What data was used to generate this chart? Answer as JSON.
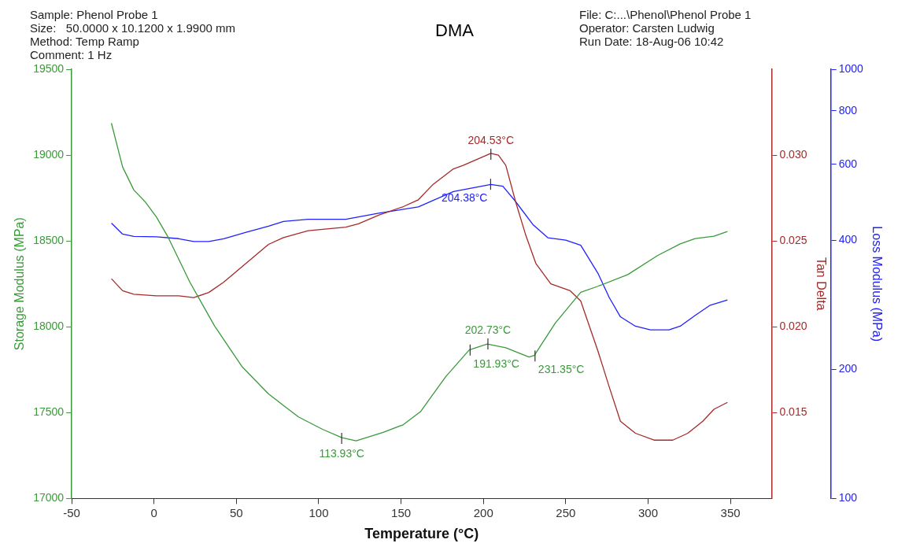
{
  "chart_data": {
    "type": "line",
    "title": "DMA",
    "xlabel": "Temperature (°C)",
    "ylabel": "Storage Modulus (MPa)",
    "y2label": "Tan Delta",
    "y3label": "Loss Modulus (MPa)",
    "xlim": [
      -50,
      375
    ],
    "xticks": [
      -50,
      0,
      50,
      100,
      150,
      200,
      250,
      300,
      350
    ],
    "ylim": [
      17000,
      19500
    ],
    "yticks": [
      17000,
      17500,
      18000,
      18500,
      19000,
      19500
    ],
    "y2lim": [
      0.01,
      0.035
    ],
    "y2ticks": [
      {
        "value": 0.015,
        "label": "0.015"
      },
      {
        "value": 0.02,
        "label": "0.020"
      },
      {
        "value": 0.025,
        "label": "0.025"
      },
      {
        "value": 0.03,
        "label": "0.030"
      }
    ],
    "y3lim": [
      100,
      1000
    ],
    "y3ticks": [
      100,
      200,
      400,
      600,
      800,
      1000
    ],
    "log": "y3",
    "grid": false,
    "legend": false,
    "series": [
      {
        "color": "#3a9a3a",
        "axis": "y",
        "x": [
          -25.9,
          -19.1,
          -12.3,
          -5.5,
          1.4,
          8.2,
          21.8,
          36.8,
          53.6,
          69.5,
          78.6,
          87.7,
          102.3,
          114.1,
          122.7,
          139.1,
          151.4,
          161.8,
          177.3,
          191.4,
          202.3,
          213.6,
          227.7,
          230.9,
          243.6,
          259.1,
          269.5,
          287.7,
          305.9,
          319.5,
          328.6,
          340,
          348.2
        ],
        "values": [
          19186,
          18931,
          18797,
          18729,
          18640,
          18528,
          18259,
          18004,
          17766,
          17609,
          17542,
          17475,
          17403,
          17354,
          17336,
          17385,
          17430,
          17506,
          17712,
          17865,
          17900,
          17878,
          17824,
          17833,
          18021,
          18201,
          18236,
          18304,
          18416,
          18483,
          18514,
          18528,
          18555
        ]
      },
      {
        "color": "#a52a2a",
        "axis": "y2",
        "x": [
          -25.9,
          -19.1,
          -12.3,
          1.4,
          15,
          24.1,
          33.2,
          42.3,
          55.9,
          69.5,
          78.6,
          93.6,
          116.4,
          124.1,
          136.4,
          151.4,
          160.5,
          169.5,
          181.8,
          187.7,
          204.5,
          209.1,
          213.6,
          219.5,
          225.5,
          231.8,
          240.9,
          252.7,
          259.1,
          269.5,
          276.4,
          283.2,
          292.3,
          303.6,
          315,
          324.1,
          333.2,
          340,
          348.2
        ],
        "values": [
          0.0228,
          0.0221,
          0.0219,
          0.0218,
          0.0218,
          0.0217,
          0.022,
          0.0226,
          0.0237,
          0.0248,
          0.0252,
          0.0256,
          0.0258,
          0.026,
          0.0265,
          0.027,
          0.0274,
          0.0283,
          0.0292,
          0.0294,
          0.0301,
          0.03,
          0.0294,
          0.0273,
          0.0254,
          0.0237,
          0.0225,
          0.0221,
          0.0215,
          0.0186,
          0.0165,
          0.0145,
          0.0138,
          0.0134,
          0.0134,
          0.0138,
          0.0145,
          0.0152,
          0.0156
        ]
      },
      {
        "color": "#2020ff",
        "axis": "y3",
        "x": [
          -25.9,
          -19.1,
          -12.3,
          1.4,
          15,
          24.1,
          33.2,
          42.3,
          55.9,
          69.5,
          78.6,
          93.6,
          116.4,
          136.4,
          160.5,
          181.8,
          204.5,
          211.8,
          219.5,
          230,
          239.1,
          250,
          259.1,
          269.5,
          276.4,
          283.2,
          292.3,
          301.4,
          312.7,
          319.5,
          328.6,
          337.7,
          348.2
        ],
        "values": [
          438,
          413,
          408,
          407,
          403,
          397,
          397,
          403,
          417,
          431,
          442,
          447,
          447,
          462,
          478,
          519,
          539,
          534,
          492,
          435,
          405,
          400,
          389,
          335,
          294,
          265,
          252,
          247,
          247,
          252,
          267,
          282,
          290
        ]
      }
    ],
    "annotations": [
      "Sample: Phenol Probe 1",
      "Size:   50.0000 x 10.1200 x 1.9900 mm",
      "Method: Temp Ramp",
      "Comment: 1 Hz",
      "File: C:...\\Phenol\\Phenol Probe 1",
      "Operator: Carsten Ludwig",
      "Run Date: 18-Aug-06 10:42",
      {
        "text": "113.93°C",
        "x": 113.93,
        "y": 17350
      },
      {
        "text": "191.93°C",
        "x": 191.93,
        "y": 17865
      },
      {
        "text": "202.73°C",
        "x": 202.73,
        "y": 17900
      },
      {
        "text": "231.35°C",
        "x": 231.35,
        "y": 17830
      },
      {
        "text": "204.53°C",
        "x": 204.53,
        "y": 19005
      },
      {
        "text": "204.38°C",
        "x": 204.38,
        "y": 18830
      }
    ]
  }
}
